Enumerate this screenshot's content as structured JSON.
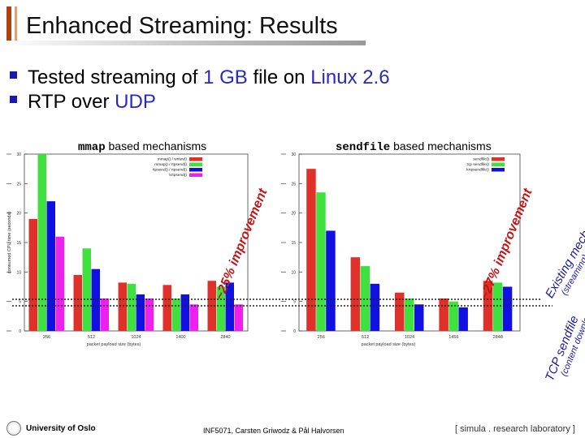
{
  "slide": {
    "title": "Enhanced Streaming: Results",
    "bullets": [
      {
        "pre": "Tested streaming of ",
        "hl1": "1 GB",
        "mid": " file on ",
        "hl2": "Linux 2.6"
      },
      {
        "pre": "RTP over ",
        "hl1": "UDP"
      }
    ]
  },
  "annotations": {
    "mmap_improvement": "~25% improvement",
    "sendfile_improvement": "~27% improvement",
    "existing_title": "Existing mechanism",
    "existing_sub": "(streaming)",
    "tcp_title": "TCP sendfile",
    "tcp_sub": "(content download)"
  },
  "footer": {
    "university": "University of Oslo",
    "course": "INF5071, Carsten Griwodz & Pål Halvorsen",
    "lab": "[ simula . research laboratory ]"
  },
  "chart_data": [
    {
      "type": "bar",
      "title_mono": "mmap",
      "title_rest": " based mechanisms",
      "xlabel": "packet payload size (bytes)",
      "ylabel": "consumed CPU time (seconds)",
      "ylim": [
        0,
        30
      ],
      "yticks": [
        0,
        5,
        10,
        15,
        20,
        25,
        30
      ],
      "categories": [
        "256",
        "512",
        "1024",
        "1400",
        "2840"
      ],
      "series": [
        {
          "name": "mmap() / writev()",
          "color": "#e0302a",
          "values": [
            19,
            9.5,
            8.2,
            7.8,
            8.5
          ]
        },
        {
          "name": "mmap() / rtpsend()",
          "color": "#3fe040",
          "values": [
            30,
            14,
            8.0,
            5.5,
            7.5
          ]
        },
        {
          "name": "rtpsend() / rtpsend()",
          "color": "#1010e0",
          "values": [
            22,
            10.5,
            6.2,
            6.2,
            8.2
          ]
        },
        {
          "name": "krtpsend()",
          "color": "#ee20ee",
          "values": [
            16,
            5.5,
            5.5,
            4.5,
            4.5
          ]
        }
      ]
    },
    {
      "type": "bar",
      "title_mono": "sendfile",
      "title_rest": " based mechanisms",
      "xlabel": "packet payload size (bytes)",
      "ylabel": "",
      "ylim": [
        0,
        30
      ],
      "yticks": [
        0,
        5,
        10,
        15,
        20,
        25,
        30
      ],
      "categories": [
        "256",
        "512",
        "1024",
        "1456",
        "2848"
      ],
      "series": [
        {
          "name": "sendfile()",
          "color": "#e0302a",
          "values": [
            27.5,
            12.5,
            6.5,
            5.5,
            8.5
          ]
        },
        {
          "name": "tcp sendfile()",
          "color": "#3fe040",
          "values": [
            23.5,
            11,
            5.5,
            5,
            8.2
          ]
        },
        {
          "name": "krtpsendfile()",
          "color": "#1010e0",
          "values": [
            17,
            8,
            4.5,
            4,
            7.5
          ]
        }
      ]
    }
  ]
}
